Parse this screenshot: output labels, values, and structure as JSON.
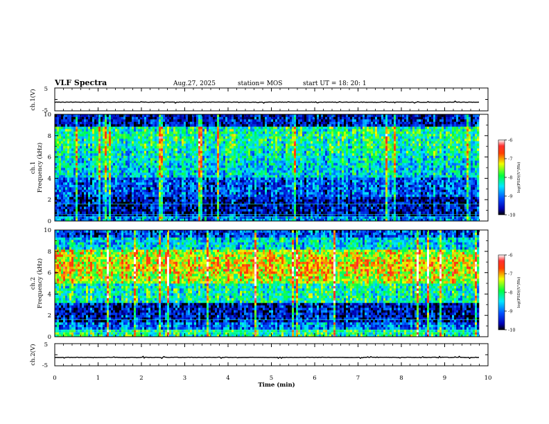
{
  "header": {
    "title": "VLF Spectra",
    "date": "Aug.27, 2025",
    "station": "station= MOS",
    "start_ut": "start  UT =   18: 20: 1"
  },
  "chart_data": [
    {
      "type": "line",
      "name": "ch1-waveform",
      "ylabel": "ch.1(V)",
      "ylim": [
        -5,
        5
      ],
      "yticks": [
        "5",
        "-5"
      ],
      "level": -1.2
    },
    {
      "type": "heatmap",
      "name": "ch1-spectrogram",
      "ylabel": "ch.1\nFrequency (kHz)",
      "ylim": [
        0,
        10
      ],
      "yticks": [
        "0",
        "2",
        "4",
        "6",
        "8",
        "10"
      ],
      "colorbar": {
        "ticks": [
          "-6",
          "-7",
          "-8",
          "-9",
          "-10"
        ],
        "label": "log(PSD)(V²/Hz)",
        "range": [
          -10,
          -6
        ]
      }
    },
    {
      "type": "heatmap",
      "name": "ch2-spectrogram",
      "ylabel": "ch.2\nFrequency (kHz)",
      "ylim": [
        0,
        10
      ],
      "yticks": [
        "0",
        "2",
        "4",
        "6",
        "8",
        "10"
      ],
      "colorbar": {
        "ticks": [
          "-6",
          "-7",
          "-8",
          "-9",
          "-10"
        ],
        "label": "log(PSD)(V²/Hz)",
        "range": [
          -10,
          -6
        ]
      }
    },
    {
      "type": "line",
      "name": "ch2-waveform",
      "ylabel": "ch.2(V)",
      "ylim": [
        -5,
        5
      ],
      "yticks": [
        "5",
        "-5"
      ],
      "level": -1.2
    }
  ],
  "xaxis": {
    "label": "Time (min)",
    "xlim": [
      0,
      10
    ],
    "ticks": [
      "0",
      "1",
      "2",
      "3",
      "4",
      "5",
      "6",
      "7",
      "8",
      "9",
      "10"
    ],
    "data_end": 9.8
  }
}
